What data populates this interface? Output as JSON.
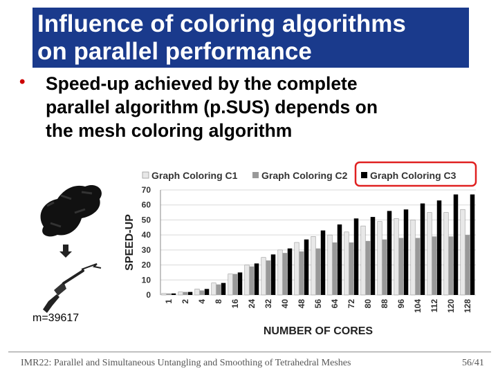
{
  "slide": {
    "title_line1": "Influence of coloring algorithms",
    "title_line2": "on parallel performance",
    "bullet_line1": "Speed-up achieved by the complete",
    "bullet_line2": "parallel algorithm (p.SUS) depends on",
    "bullet_line3": "the mesh coloring algorithm",
    "mesh_label": "m=39617",
    "footer": "IMR22: Parallel and Simultaneous Untangling and Smoothing of Tetrahedral Meshes",
    "page": "56/41"
  },
  "chart_data": {
    "type": "bar",
    "xlabel": "NUMBER OF CORES",
    "ylabel": "SPEED-UP",
    "ylim": [
      0,
      70
    ],
    "yticks": [
      0,
      10,
      20,
      30,
      40,
      50,
      60,
      70
    ],
    "categories": [
      "1",
      "2",
      "4",
      "8",
      "16",
      "24",
      "32",
      "40",
      "48",
      "56",
      "64",
      "72",
      "80",
      "88",
      "96",
      "104",
      "112",
      "120",
      "128"
    ],
    "series": [
      {
        "name": "Graph Coloring C1",
        "color": "#e8e8e8",
        "values": [
          1,
          2,
          4,
          8,
          14,
          20,
          25,
          30,
          35,
          39,
          40,
          42,
          46,
          49,
          51,
          50,
          55,
          55,
          57
        ]
      },
      {
        "name": "Graph Coloring C2",
        "color": "#999999",
        "values": [
          1,
          2,
          3,
          7,
          14,
          19,
          23,
          28,
          29,
          31,
          35,
          35,
          36,
          37,
          38,
          38,
          39,
          39,
          40
        ]
      },
      {
        "name": "Graph Coloring C3",
        "color": "#000000",
        "values": [
          1,
          2,
          4,
          8,
          15,
          21,
          27,
          31,
          37,
          43,
          47,
          51,
          52,
          56,
          57,
          61,
          63,
          67,
          67
        ]
      }
    ],
    "highlight": "Graph Coloring C3",
    "legend": "top"
  }
}
